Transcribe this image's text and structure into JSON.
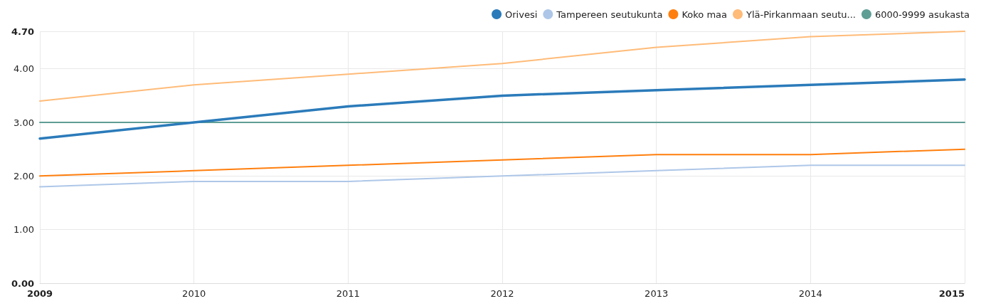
{
  "chart_data": {
    "type": "line",
    "categories": [
      "2009",
      "2010",
      "2011",
      "2012",
      "2013",
      "2014",
      "2015"
    ],
    "series": [
      {
        "name": "Orivesi",
        "color": "#2b7bba",
        "values": [
          2.7,
          3.0,
          3.3,
          3.5,
          3.6,
          3.7,
          3.8
        ]
      },
      {
        "name": "Tampereen seutukunta",
        "color": "#aec7e8",
        "values": [
          1.8,
          1.9,
          1.9,
          2.0,
          2.1,
          2.2,
          2.2
        ]
      },
      {
        "name": "Koko maa",
        "color": "#ff7f0e",
        "values": [
          2.0,
          2.1,
          2.2,
          2.3,
          2.4,
          2.4,
          2.5
        ]
      },
      {
        "name": "Ylä-Pirkanmaan seutu...",
        "color": "#ffbb78",
        "values": [
          3.4,
          3.7,
          3.9,
          4.1,
          4.4,
          4.6,
          4.7
        ]
      },
      {
        "name": "6000-9999 asukasta",
        "color": "#5f9e95",
        "values": [
          3.0,
          3.0,
          3.0,
          3.0,
          3.0,
          3.0,
          3.0
        ]
      }
    ],
    "ylim": [
      0,
      4.7
    ],
    "yticks": [
      {
        "value": 0,
        "label": "0.00"
      },
      {
        "value": 1,
        "label": "1.00"
      },
      {
        "value": 2,
        "label": "2.00"
      },
      {
        "value": 3,
        "label": "3.00"
      },
      {
        "value": 4,
        "label": "4.00"
      },
      {
        "value": 4.7,
        "label": "4.70"
      }
    ],
    "grid": true,
    "legend": "top right",
    "marker": "none",
    "line_style": "solid"
  }
}
